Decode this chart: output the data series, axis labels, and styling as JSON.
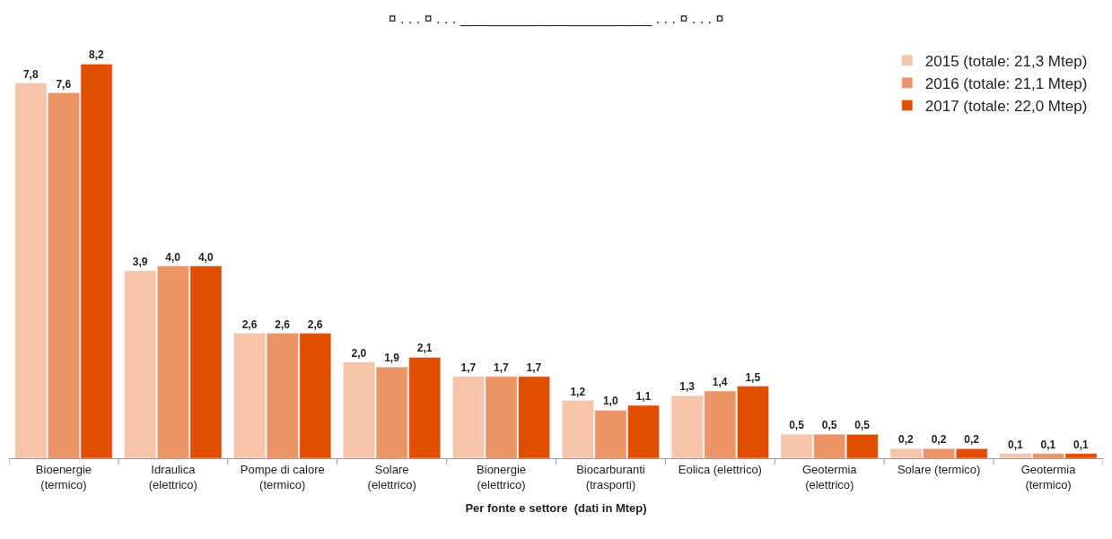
{
  "chart_data": {
    "type": "bar",
    "title": "¤ . . . ¤ . . . ________________________ . . . ¤ . . . ¤",
    "xlabel": "Per fonte e settore  (dati in Mtep)",
    "categories": [
      "Bioenergie\n(termico)",
      "Idraulica\n(elettrico)",
      "Pompe di calore\n(termico)",
      "Solare\n(elettrico)",
      "Bionergie\n(elettrico)",
      "Biocarburanti\n(trasporti)",
      "Eolica (elettrico)",
      "Geotermia\n(elettrico)",
      "Solare (termico)",
      "Geotermia\n(termico)"
    ],
    "series": [
      {
        "name": "2015 (totale: 21,3 Mtep)",
        "color": "#f6c4a9",
        "values": [
          7.8,
          3.9,
          2.6,
          2.0,
          1.7,
          1.2,
          1.3,
          0.5,
          0.2,
          0.1
        ],
        "value_labels": [
          "7,8",
          "3,9",
          "2,6",
          "2,0",
          "1,7",
          "1,2",
          "1,3",
          "0,5",
          "0,2",
          "0,1"
        ]
      },
      {
        "name": "2016 (totale: 21,1 Mtep)",
        "color": "#ec9466",
        "values": [
          7.6,
          4.0,
          2.6,
          1.9,
          1.7,
          1.0,
          1.4,
          0.5,
          0.2,
          0.1
        ],
        "value_labels": [
          "7,6",
          "4,0",
          "2,6",
          "1,9",
          "1,7",
          "1,0",
          "1,4",
          "0,5",
          "0,2",
          "0,1"
        ]
      },
      {
        "name": "2017 (totale: 22,0 Mtep)",
        "color": "#e04e00",
        "values": [
          8.2,
          4.0,
          2.6,
          2.1,
          1.7,
          1.1,
          1.5,
          0.5,
          0.2,
          0.1
        ],
        "value_labels": [
          "8,2",
          "4,0",
          "2,6",
          "2,1",
          "1,7",
          "1,1",
          "1,5",
          "0,5",
          "0,2",
          "0,1"
        ]
      }
    ],
    "legend": "top right"
  }
}
